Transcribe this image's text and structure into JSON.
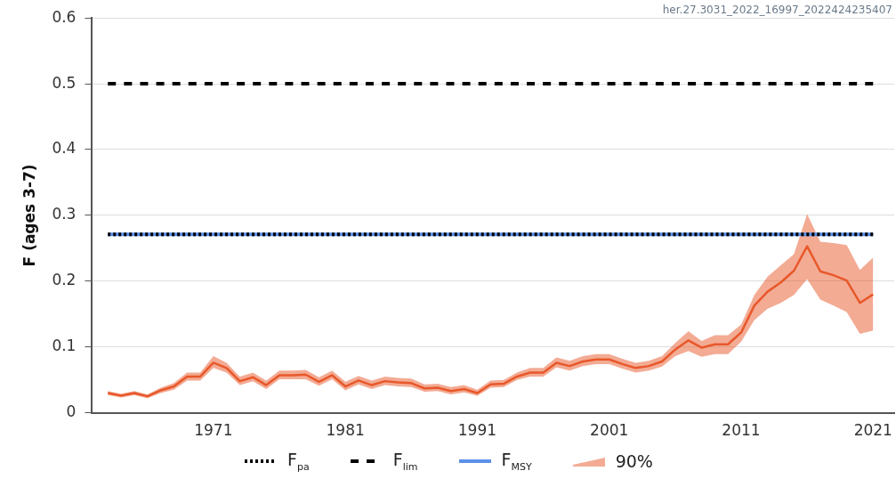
{
  "chart_data": {
    "type": "line",
    "ylabel": "F (ages 3-7)",
    "annotations": [
      "her.27.3031_2022_16997_2022424235407"
    ],
    "xlim": [
      1961.8,
      2022.6
    ],
    "xticks": [
      1971,
      1981,
      1991,
      2001,
      2011,
      2021
    ],
    "ylim": [
      0,
      0.6
    ],
    "yticks": [
      0,
      0.1,
      0.2,
      0.3,
      0.4,
      0.5,
      0.6
    ],
    "grid": "y",
    "legend": "bottom",
    "marker": "none",
    "series": [
      {
        "name": "F$_{pa}$",
        "color": "#000000",
        "line_style": "dotted",
        "x": [
          1963,
          2021
        ],
        "values": [
          0.271,
          0.271
        ]
      },
      {
        "name": "F$_{lim}$",
        "color": "#000000",
        "line_style": "dashed",
        "x": [
          1963,
          2021
        ],
        "values": [
          0.5,
          0.5
        ]
      },
      {
        "name": "F$_{MSY}$",
        "color": "#5b8fe8",
        "line_style": "solid",
        "x": [
          1963,
          2021
        ],
        "values": [
          0.271,
          0.271
        ]
      },
      {
        "name": "90%",
        "color": "#e8582a",
        "line_style": "solid",
        "x": [
          1963,
          1964,
          1965,
          1966,
          1967,
          1968,
          1969,
          1970,
          1971,
          1972,
          1973,
          1974,
          1975,
          1976,
          1977,
          1978,
          1979,
          1980,
          1981,
          1982,
          1983,
          1984,
          1985,
          1986,
          1987,
          1988,
          1989,
          1990,
          1991,
          1992,
          1993,
          1994,
          1995,
          1996,
          1997,
          1998,
          1999,
          2000,
          2001,
          2002,
          2003,
          2004,
          2005,
          2006,
          2007,
          2008,
          2009,
          2010,
          2011,
          2012,
          2013,
          2014,
          2015,
          2016,
          2017,
          2018,
          2019,
          2020,
          2021
        ],
        "values": [
          0.03,
          0.026,
          0.03,
          0.025,
          0.034,
          0.04,
          0.055,
          0.055,
          0.076,
          0.068,
          0.048,
          0.054,
          0.042,
          0.057,
          0.057,
          0.058,
          0.047,
          0.057,
          0.04,
          0.049,
          0.042,
          0.048,
          0.046,
          0.045,
          0.037,
          0.038,
          0.033,
          0.036,
          0.03,
          0.043,
          0.044,
          0.055,
          0.061,
          0.061,
          0.076,
          0.071,
          0.078,
          0.081,
          0.081,
          0.074,
          0.068,
          0.071,
          0.078,
          0.096,
          0.11,
          0.099,
          0.104,
          0.104,
          0.122,
          0.163,
          0.184,
          0.198,
          0.216,
          0.253,
          0.215,
          0.209,
          0.201,
          0.167,
          0.18
        ],
        "lower": [
          0.027,
          0.023,
          0.027,
          0.022,
          0.03,
          0.035,
          0.049,
          0.049,
          0.068,
          0.061,
          0.042,
          0.048,
          0.036,
          0.051,
          0.051,
          0.051,
          0.041,
          0.051,
          0.034,
          0.043,
          0.036,
          0.042,
          0.04,
          0.039,
          0.032,
          0.033,
          0.028,
          0.031,
          0.026,
          0.038,
          0.039,
          0.05,
          0.055,
          0.055,
          0.069,
          0.064,
          0.071,
          0.074,
          0.074,
          0.067,
          0.061,
          0.064,
          0.07,
          0.086,
          0.094,
          0.085,
          0.089,
          0.089,
          0.108,
          0.141,
          0.158,
          0.167,
          0.179,
          0.203,
          0.172,
          0.163,
          0.153,
          0.12,
          0.125
        ],
        "upper": [
          0.033,
          0.029,
          0.033,
          0.028,
          0.038,
          0.045,
          0.061,
          0.061,
          0.086,
          0.076,
          0.055,
          0.061,
          0.049,
          0.064,
          0.064,
          0.065,
          0.054,
          0.064,
          0.047,
          0.056,
          0.049,
          0.055,
          0.053,
          0.052,
          0.043,
          0.044,
          0.039,
          0.042,
          0.035,
          0.049,
          0.05,
          0.061,
          0.068,
          0.068,
          0.084,
          0.079,
          0.086,
          0.089,
          0.089,
          0.082,
          0.076,
          0.079,
          0.086,
          0.106,
          0.124,
          0.109,
          0.118,
          0.118,
          0.134,
          0.179,
          0.207,
          0.224,
          0.241,
          0.302,
          0.26,
          0.258,
          0.255,
          0.217,
          0.236
        ]
      }
    ]
  }
}
